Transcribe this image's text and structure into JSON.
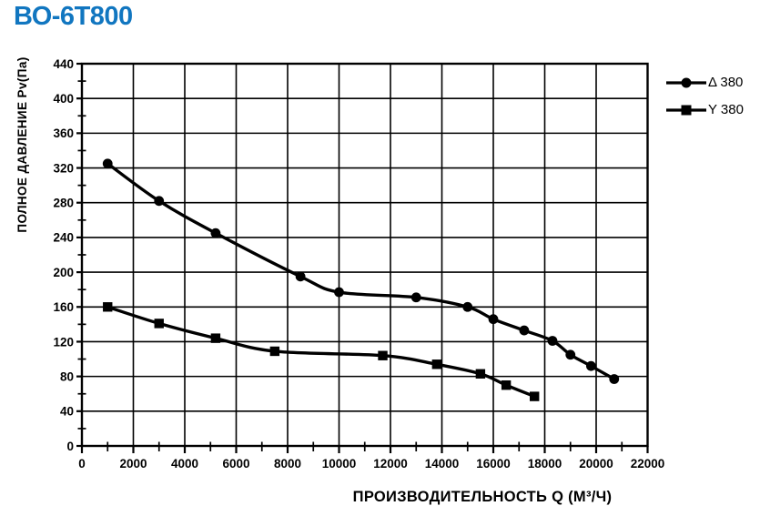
{
  "page": {
    "title": "ВО-6Т800",
    "title_color": "#1176c0"
  },
  "chart_data": {
    "type": "line",
    "title": "ВО-6Т800",
    "xlabel": "ПРОИЗВОДИТЕЛЬНОСТЬ  Q  (М³/Ч)",
    "ylabel": "ПОЛНОЕ ДАВЛЕНИЕ  Pv(Па)",
    "xlim": [
      0,
      22000
    ],
    "ylim": [
      0,
      440
    ],
    "x_ticks": [
      0,
      2000,
      4000,
      6000,
      8000,
      10000,
      12000,
      14000,
      16000,
      18000,
      20000,
      22000
    ],
    "y_ticks": [
      0,
      40,
      80,
      120,
      160,
      200,
      240,
      280,
      320,
      360,
      400,
      440
    ],
    "x_minor_step": 1000,
    "y_minor_step": 20,
    "grid": true,
    "line_color": "#000000",
    "legend_position": "outside-top-right",
    "series": [
      {
        "name": "Δ 380",
        "marker": "circle",
        "points": [
          [
            1000,
            325
          ],
          [
            3000,
            282
          ],
          [
            5200,
            245
          ],
          [
            8500,
            195
          ],
          [
            10000,
            177
          ],
          [
            13000,
            171
          ],
          [
            15000,
            160
          ],
          [
            16000,
            146
          ],
          [
            17200,
            133
          ],
          [
            18300,
            121
          ],
          [
            19000,
            105
          ],
          [
            19800,
            92
          ],
          [
            20700,
            77
          ]
        ]
      },
      {
        "name": "Y 380",
        "marker": "square",
        "points": [
          [
            1000,
            160
          ],
          [
            3000,
            141
          ],
          [
            5200,
            124
          ],
          [
            7500,
            109
          ],
          [
            11700,
            104
          ],
          [
            13800,
            94
          ],
          [
            15500,
            83
          ],
          [
            16500,
            70
          ],
          [
            17600,
            57
          ]
        ]
      }
    ]
  }
}
